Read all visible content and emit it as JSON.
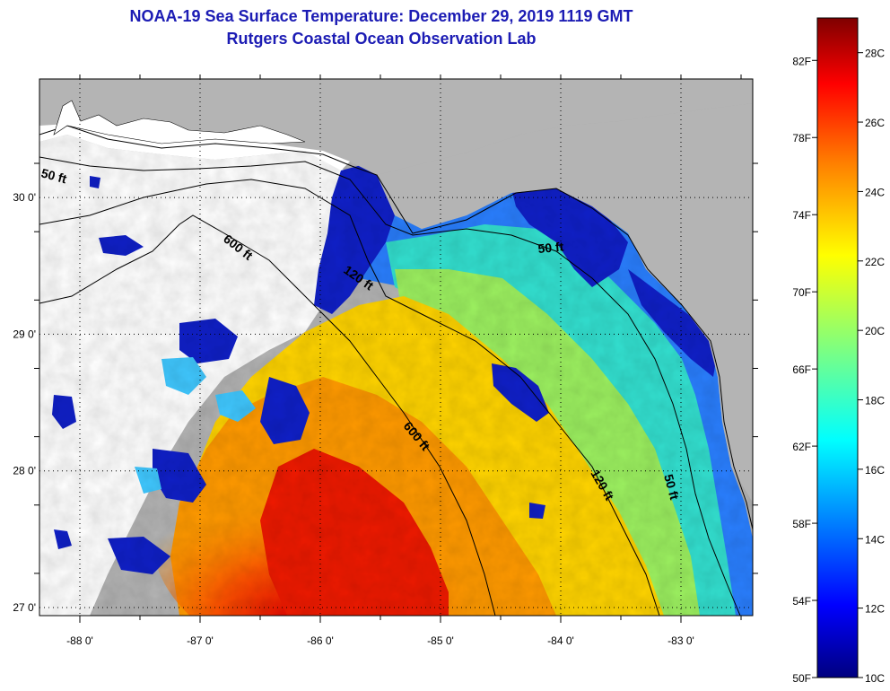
{
  "title": {
    "line1": "NOAA-19 Sea Surface Temperature:  December 29, 2019 1119 GMT",
    "line2": "Rutgers Coastal Ocean Observation Lab"
  },
  "map": {
    "lon_ticks": [
      {
        "value": -88,
        "label": "-88 0'"
      },
      {
        "value": -87,
        "label": "-87 0'"
      },
      {
        "value": -86,
        "label": "-86 0'"
      },
      {
        "value": -85,
        "label": "-85 0'"
      },
      {
        "value": -84,
        "label": "-84 0'"
      },
      {
        "value": -83,
        "label": "-83 0'"
      }
    ],
    "lat_ticks": [
      {
        "value": 30,
        "label": "30 0'"
      },
      {
        "value": 29,
        "label": "29 0'"
      },
      {
        "value": 28,
        "label": "28 0'"
      },
      {
        "value": 27,
        "label": "27 0'"
      }
    ],
    "contour_labels": [
      {
        "text": "50 ft"
      },
      {
        "text": "600 ft"
      },
      {
        "text": "120 ft"
      },
      {
        "text": "50 ft"
      },
      {
        "text": "600 ft"
      },
      {
        "text": "120 ft"
      },
      {
        "text": "50 ft"
      }
    ],
    "colors": {
      "land": "#b4b4b4",
      "cloud": "#ffffff",
      "contour": "#000000"
    }
  },
  "colorbar": {
    "min_c": 10,
    "max_c": 29,
    "fahrenheit_labels": [
      "82F",
      "78F",
      "74F",
      "70F",
      "66F",
      "62F",
      "58F",
      "54F",
      "50F"
    ],
    "celsius_labels": [
      "28C",
      "26C",
      "24C",
      "22C",
      "20C",
      "18C",
      "16C",
      "14C",
      "12C",
      "10C"
    ],
    "colormap": [
      "#00007f",
      "#0000ff",
      "#007fff",
      "#00ffff",
      "#7fff7f",
      "#ffff00",
      "#ff7f00",
      "#ff0000",
      "#7f0000"
    ]
  }
}
